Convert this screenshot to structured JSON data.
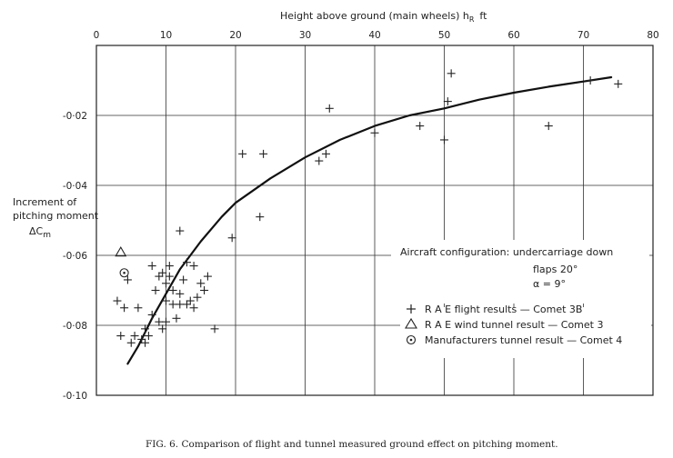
{
  "chart_data": {
    "type": "scatter",
    "xlabel_top": "Height above ground (main wheels) h",
    "xlabel_sub": "R",
    "xlabel_unit": "ft",
    "ylabel_lines": [
      "Increment of",
      "pitching moment"
    ],
    "ylabel_sym": "ΔC",
    "ylabel_sub": "m",
    "xlim": [
      0,
      80
    ],
    "ylim": [
      -0.1,
      0.0
    ],
    "x_ticks": [
      0,
      10,
      20,
      30,
      40,
      50,
      60,
      70,
      80
    ],
    "x_tick_labels": [
      "0",
      "10",
      "20",
      "30",
      "40",
      "50",
      "60",
      "70",
      "80"
    ],
    "y_ticks": [
      -0.02,
      -0.04,
      -0.06,
      -0.08,
      -0.1
    ],
    "y_tick_labels": [
      "-0·02",
      "-0·04",
      "-0·06",
      "-0·08",
      "-0·10"
    ],
    "grid": true,
    "config_text": {
      "line1": "Aircraft configuration: undercarriage down",
      "line2": "flaps 20°",
      "line3": "α = 9°"
    },
    "legend": [
      {
        "symbol": "plus",
        "label": "R A E flight results — Comet 3B"
      },
      {
        "symbol": "triangle",
        "label": "R A E wind tunnel result — Comet 3"
      },
      {
        "symbol": "circle-dot",
        "label": "Manufacturers tunnel result — Comet 4"
      }
    ],
    "series": [
      {
        "symbol": "plus",
        "points": [
          [
            3,
            -0.073
          ],
          [
            3.5,
            -0.083
          ],
          [
            4,
            -0.075
          ],
          [
            4.5,
            -0.067
          ],
          [
            5,
            -0.085
          ],
          [
            5.5,
            -0.083
          ],
          [
            6,
            -0.075
          ],
          [
            6.5,
            -0.084
          ],
          [
            7,
            -0.081
          ],
          [
            7,
            -0.085
          ],
          [
            7.5,
            -0.083
          ],
          [
            8,
            -0.063
          ],
          [
            8,
            -0.077
          ],
          [
            8.5,
            -0.07
          ],
          [
            9,
            -0.066
          ],
          [
            9,
            -0.079
          ],
          [
            9.5,
            -0.081
          ],
          [
            9.5,
            -0.065
          ],
          [
            10,
            -0.068
          ],
          [
            10,
            -0.073
          ],
          [
            10,
            -0.079
          ],
          [
            10.5,
            -0.063
          ],
          [
            10.5,
            -0.066
          ],
          [
            11,
            -0.07
          ],
          [
            11,
            -0.074
          ],
          [
            11.5,
            -0.078
          ],
          [
            12,
            -0.053
          ],
          [
            12,
            -0.071
          ],
          [
            12,
            -0.074
          ],
          [
            12.5,
            -0.067
          ],
          [
            13,
            -0.074
          ],
          [
            13,
            -0.062
          ],
          [
            13.5,
            -0.073
          ],
          [
            14,
            -0.075
          ],
          [
            14,
            -0.063
          ],
          [
            14.5,
            -0.072
          ],
          [
            15,
            -0.068
          ],
          [
            15.5,
            -0.07
          ],
          [
            16,
            -0.066
          ],
          [
            17,
            -0.081
          ],
          [
            19.5,
            -0.055
          ],
          [
            21,
            -0.031
          ],
          [
            23.5,
            -0.049
          ],
          [
            24,
            -0.031
          ],
          [
            32,
            -0.033
          ],
          [
            33,
            -0.031
          ],
          [
            33.5,
            -0.018
          ],
          [
            40,
            -0.025
          ],
          [
            46.5,
            -0.023
          ],
          [
            50,
            -0.027
          ],
          [
            50.5,
            -0.016
          ],
          [
            51,
            -0.008
          ],
          [
            65,
            -0.023
          ],
          [
            71,
            -0.01
          ],
          [
            75,
            -0.011
          ]
        ]
      },
      {
        "symbol": "triangle",
        "points": [
          [
            3.5,
            -0.059
          ]
        ]
      },
      {
        "symbol": "circle-dot",
        "points": [
          [
            4,
            -0.065
          ]
        ]
      }
    ],
    "fit_curve": [
      [
        4.5,
        -0.091
      ],
      [
        6,
        -0.086
      ],
      [
        8,
        -0.078
      ],
      [
        10,
        -0.071
      ],
      [
        12,
        -0.064
      ],
      [
        15,
        -0.056
      ],
      [
        18,
        -0.049
      ],
      [
        20,
        -0.045
      ],
      [
        25,
        -0.038
      ],
      [
        30,
        -0.032
      ],
      [
        35,
        -0.027
      ],
      [
        40,
        -0.023
      ],
      [
        45,
        -0.02
      ],
      [
        50,
        -0.018
      ],
      [
        55,
        -0.0155
      ],
      [
        60,
        -0.0135
      ],
      [
        65,
        -0.0118
      ],
      [
        70,
        -0.0103
      ],
      [
        74,
        -0.0091
      ]
    ]
  },
  "caption": "FIG. 6. Comparison of flight and tunnel measured ground effect on pitching moment."
}
